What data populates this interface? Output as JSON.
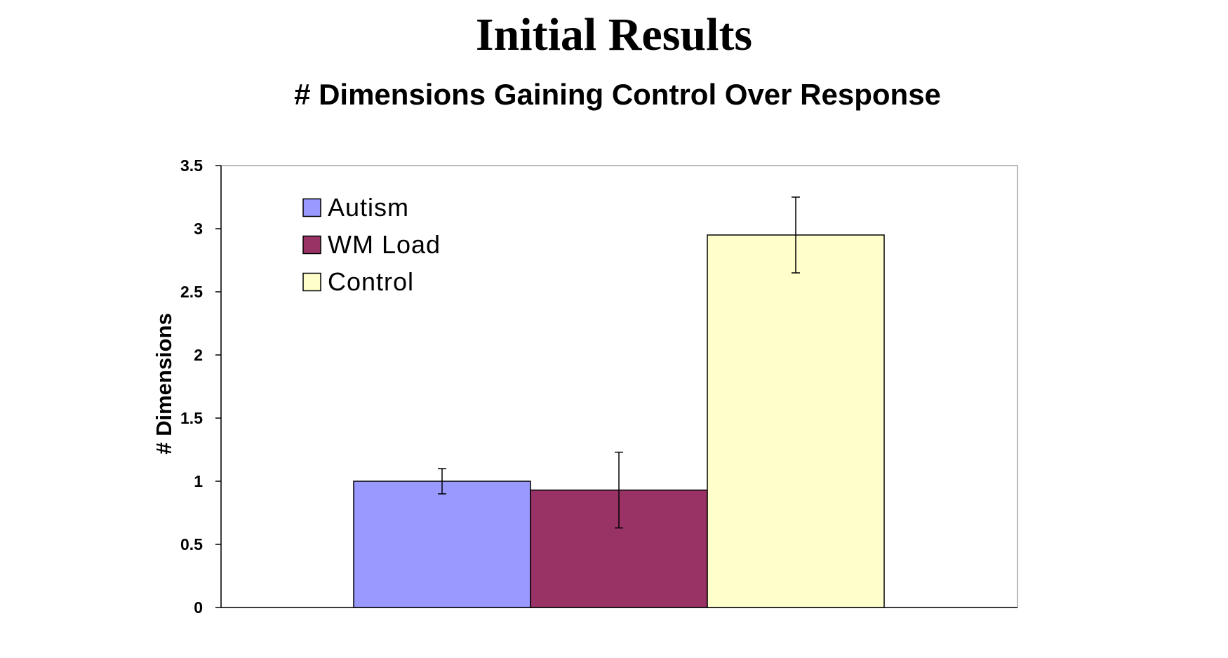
{
  "slide": {
    "title": "Initial Results"
  },
  "chart_data": {
    "type": "bar",
    "title": "# Dimensions Gaining Control Over Response",
    "xlabel": "",
    "ylabel": "# Dimensions",
    "ylim": [
      0,
      3.5
    ],
    "yticks": [
      0,
      0.5,
      1,
      1.5,
      2,
      2.5,
      3,
      3.5
    ],
    "ytick_labels": [
      "0",
      "0.5",
      "1",
      "1.5",
      "2",
      "2.5",
      "3",
      "3.5"
    ],
    "grid": false,
    "legend_position": "top-left",
    "series": [
      {
        "name": "Autism",
        "value": 1.0,
        "error": 0.1,
        "color": "#9999ff"
      },
      {
        "name": "WM Load",
        "value": 0.93,
        "error": 0.3,
        "color": "#993366"
      },
      {
        "name": "Control",
        "value": 2.95,
        "error": 0.3,
        "color": "#ffffcc"
      }
    ]
  }
}
